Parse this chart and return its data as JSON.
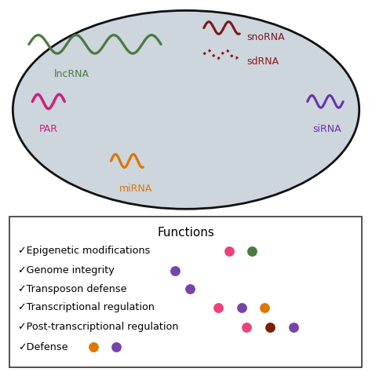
{
  "oval_bg": "#cdd5dd",
  "oval_border": "#111111",
  "fig_bg": "#ffffff",
  "legend_title": "Functions",
  "legend_items": [
    {
      "text": "Epigenetic modifications",
      "dots": [
        "#e8447a",
        "#4a7a40"
      ]
    },
    {
      "text": "Genome integrity",
      "dots": [
        "#7744aa"
      ]
    },
    {
      "text": "Transposon defense",
      "dots": [
        "#7744aa"
      ]
    },
    {
      "text": "Transcriptional regulation",
      "dots": [
        "#e8447a",
        "#7744aa",
        "#dd7700"
      ]
    },
    {
      "text": "Post-transcriptional regulation",
      "dots": [
        "#e8447a",
        "#7b2000",
        "#7744aa"
      ]
    },
    {
      "text": "Defense",
      "dots": [
        "#dd7700",
        "#7744aa"
      ]
    }
  ],
  "legend_box_color": "#ffffff",
  "legend_box_border": "#333333",
  "lncRNA_color": "#4a7a40",
  "snoRNA_color": "#7a1818",
  "sdRNA_color": "#8b1a1a",
  "PAR_color": "#cc2277",
  "siRNA_color": "#6633aa",
  "miRNA_color": "#dd7700"
}
